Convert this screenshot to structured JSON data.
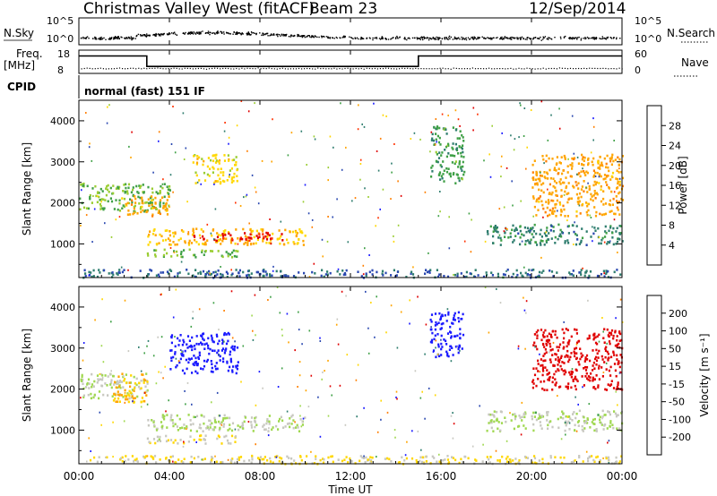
{
  "header": {
    "title": "Christmas Valley West (fitACF)",
    "beam": "Beam 23",
    "date": "12/Sep/2014",
    "cpid_label": "CPID",
    "cpid_text": "normal (fast) 151 IF",
    "xlabel": "Time UT"
  },
  "strip_labels": {
    "nsky": "N.Sky",
    "nsky_ticks": [
      "10^5",
      "10^0"
    ],
    "nsearch": "N.Search",
    "freq": "Freq.",
    "freq_unit": "[MHz]",
    "freq_ticks": [
      "18",
      "8"
    ],
    "nave": "Nave",
    "nave_ticks": [
      "60",
      "0"
    ]
  },
  "x_ticks": [
    "00:00",
    "04:00",
    "08:00",
    "12:00",
    "16:00",
    "20:00",
    "00:00"
  ],
  "y_ticks": [
    "1000",
    "2000",
    "3000",
    "4000"
  ],
  "panel_ylabel": "Slant Range [km]",
  "power_colorbar": {
    "label": "Power [dB]",
    "ticks": [
      "4",
      "8",
      "12",
      "16",
      "20",
      "24",
      "28"
    ],
    "colors": [
      "#1a1aff",
      "#2a48b0",
      "#2e7d6e",
      "#3fa046",
      "#9acd32",
      "#ffd700",
      "#ffa500",
      "#ff7f00",
      "#ff3000",
      "#e00000"
    ]
  },
  "velocity_colorbar": {
    "label": "Velocity [m s⁻¹]",
    "ticks": [
      "200",
      "100",
      "50",
      "15",
      "-15",
      "-50",
      "-100",
      "-200"
    ],
    "colors": [
      "#1a1aff",
      "#2a48b0",
      "#2e7d6e",
      "#3fa046",
      "#a0d850",
      "#c8c8c0",
      "#ffd700",
      "#ffa500",
      "#ff7f00",
      "#e00000"
    ]
  },
  "chart_data": [
    {
      "type": "heatmap",
      "title": "Power [dB]",
      "xlabel": "Time UT",
      "ylabel": "Slant Range [km]",
      "xlim": [
        "00:00",
        "24:00"
      ],
      "ylim": [
        180,
        4500
      ],
      "zlim": [
        0,
        30
      ],
      "features": [
        {
          "start": "00:00",
          "end": "04:00",
          "range_km": [
            1800,
            2500
          ],
          "power_db": 12
        },
        {
          "start": "02:00",
          "end": "04:00",
          "range_km": [
            1700,
            2200
          ],
          "power_db": 20
        },
        {
          "start": "03:00",
          "end": "10:00",
          "range_km": [
            1000,
            1400
          ],
          "power_db": 18
        },
        {
          "start": "05:00",
          "end": "09:00",
          "range_km": [
            1100,
            1300
          ],
          "power_db": 28
        },
        {
          "start": "03:00",
          "end": "07:00",
          "range_km": [
            700,
            900
          ],
          "power_db": 12
        },
        {
          "start": "05:00",
          "end": "07:00",
          "range_km": [
            2500,
            3200
          ],
          "power_db": 16
        },
        {
          "start": "15:30",
          "end": "17:00",
          "range_km": [
            2500,
            3900
          ],
          "power_db": 10
        },
        {
          "start": "18:00",
          "end": "24:00",
          "range_km": [
            1000,
            1500
          ],
          "power_db": 8
        },
        {
          "start": "20:00",
          "end": "24:00",
          "range_km": [
            1700,
            3200
          ],
          "power_db": 20
        },
        {
          "start": "00:00",
          "end": "24:00",
          "range_km": [
            200,
            400
          ],
          "power_db": 6
        }
      ]
    },
    {
      "type": "heatmap",
      "title": "Velocity [m s⁻¹]",
      "xlabel": "Time UT",
      "ylabel": "Slant Range [km]",
      "xlim": [
        "00:00",
        "24:00"
      ],
      "ylim": [
        180,
        4500
      ],
      "zlim": [
        -200,
        200
      ],
      "features": [
        {
          "start": "00:00",
          "end": "03:00",
          "range_km": [
            1800,
            2400
          ],
          "velocity_ms": 0
        },
        {
          "start": "01:30",
          "end": "03:00",
          "range_km": [
            1700,
            2400
          ],
          "velocity_ms": -80
        },
        {
          "start": "04:00",
          "end": "07:00",
          "range_km": [
            2400,
            3400
          ],
          "velocity_ms": 200
        },
        {
          "start": "03:00",
          "end": "10:00",
          "range_km": [
            1000,
            1400
          ],
          "velocity_ms": 0
        },
        {
          "start": "03:00",
          "end": "07:00",
          "range_km": [
            700,
            900
          ],
          "velocity_ms": -40
        },
        {
          "start": "15:30",
          "end": "17:00",
          "range_km": [
            2800,
            3900
          ],
          "velocity_ms": 200
        },
        {
          "start": "20:00",
          "end": "24:00",
          "range_km": [
            2000,
            3500
          ],
          "velocity_ms": -200
        },
        {
          "start": "18:00",
          "end": "24:00",
          "range_km": [
            1000,
            1500
          ],
          "velocity_ms": 0
        },
        {
          "start": "00:00",
          "end": "24:00",
          "range_km": [
            200,
            400
          ],
          "velocity_ms": -40
        }
      ]
    },
    {
      "type": "line",
      "title": "Freq. [MHz]",
      "ylim": [
        8,
        18
      ],
      "series": [
        {
          "name": "Freq.",
          "x": [
            "00:00",
            "03:00",
            "03:00",
            "15:00",
            "15:00",
            "24:00"
          ],
          "y": [
            15.5,
            15.5,
            11,
            11,
            15.5,
            15.5
          ]
        }
      ]
    }
  ]
}
